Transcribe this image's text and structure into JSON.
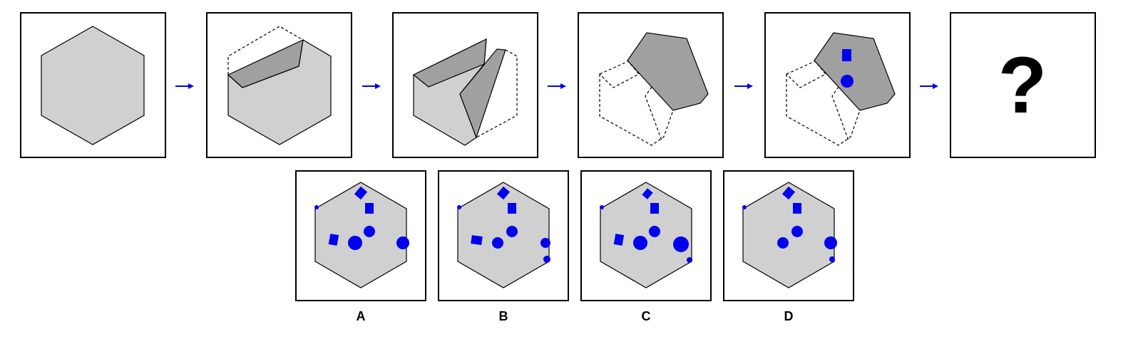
{
  "puzzle": {
    "question_mark": "?",
    "options": [
      "A",
      "B",
      "C",
      "D"
    ]
  },
  "colors": {
    "shape_fill": "#d0d0d0",
    "flap_fill": "#a0a0a0",
    "outline": "#000000",
    "marker": "#0000ee",
    "arrow": "#0000ee"
  },
  "steps": [
    {
      "label": "unfolded-hexagon"
    },
    {
      "label": "first-fold"
    },
    {
      "label": "second-fold"
    },
    {
      "label": "third-fold"
    },
    {
      "label": "punched-holes"
    },
    {
      "label": "unknown-result"
    }
  ]
}
